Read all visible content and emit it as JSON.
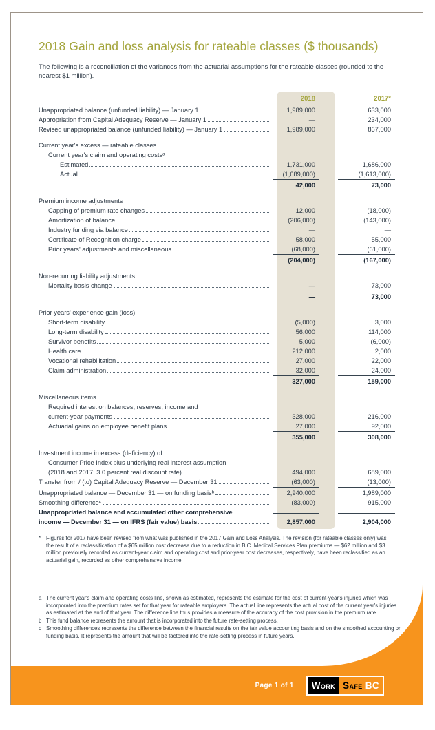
{
  "page": {
    "title": "2018 Gain and loss analysis for rateable classes ($ thousands)",
    "intro": "The following is a reconciliation of the variances from the actuarial assumptions for the rateable classes (rounded to the nearest $1 million)."
  },
  "table": {
    "col_2018": "2018",
    "col_2017": "2017*",
    "rows": [
      {
        "label": "Unappropriated balance (unfunded liability) — January 1",
        "i": 0,
        "leader": true,
        "v1": "1,989,000",
        "v2": "633,000"
      },
      {
        "label": "Appropriation from Capital Adequacy Reserve — January 1",
        "i": 0,
        "leader": true,
        "v1": "—",
        "v2": "234,000"
      },
      {
        "label": "Revised unappropriated balance (unfunded liability) — January 1",
        "i": 0,
        "leader": true,
        "v1": "1,989,000",
        "v2": "867,000"
      },
      {
        "label": "Current year's excess — rateable classes",
        "i": 0,
        "gap": true
      },
      {
        "label": "Current year's claim and operating costsᵃ",
        "i": 1
      },
      {
        "label": "Estimated",
        "i": 2,
        "leader": true,
        "v1": "1,731,000",
        "v2": "1,686,000"
      },
      {
        "label": "Actual",
        "i": 2,
        "leader": true,
        "v1": "(1,689,000)",
        "v2": "(1,613,000)"
      },
      {
        "label": "",
        "v1": "42,000",
        "v2": "73,000",
        "bold": true,
        "rule": true
      },
      {
        "label": "Premium income adjustments",
        "i": 0,
        "gap": true
      },
      {
        "label": "Capping of premium rate changes",
        "i": 1,
        "leader": true,
        "v1": "12,000",
        "v2": "(18,000)"
      },
      {
        "label": "Amortization of balance",
        "i": 1,
        "leader": true,
        "v1": "(206,000)",
        "v2": "(143,000)"
      },
      {
        "label": "Industry funding via balance",
        "i": 1,
        "leader": true,
        "v1": "—",
        "v2": "—"
      },
      {
        "label": "Certificate of Recognition charge",
        "i": 1,
        "leader": true,
        "v1": "58,000",
        "v2": "55,000"
      },
      {
        "label": "Prior years' adjustments and miscellaneous",
        "i": 1,
        "leader": true,
        "v1": "(68,000)",
        "v2": "(61,000)"
      },
      {
        "label": "",
        "v1": "(204,000)",
        "v2": "(167,000)",
        "bold": true,
        "rule": true
      },
      {
        "label": "Non-recurring liability adjustments",
        "i": 0,
        "gap": true
      },
      {
        "label": "Mortality basis change",
        "i": 1,
        "leader": true,
        "v1": "—",
        "v2": "73,000"
      },
      {
        "label": "",
        "v1": "—",
        "v2": "73,000",
        "bold": true,
        "rule": true
      },
      {
        "label": "Prior years' experience gain (loss)",
        "i": 0,
        "gap": true
      },
      {
        "label": "Short-term disability",
        "i": 1,
        "leader": true,
        "v1": "(5,000)",
        "v2": "3,000"
      },
      {
        "label": "Long-term disability",
        "i": 1,
        "leader": true,
        "v1": "56,000",
        "v2": "114,000"
      },
      {
        "label": "Survivor benefits",
        "i": 1,
        "leader": true,
        "v1": "5,000",
        "v2": "(6,000)"
      },
      {
        "label": "Health care",
        "i": 1,
        "leader": true,
        "v1": "212,000",
        "v2": "2,000"
      },
      {
        "label": "Vocational rehabilitation",
        "i": 1,
        "leader": true,
        "v1": "27,000",
        "v2": "22,000"
      },
      {
        "label": "Claim administration",
        "i": 1,
        "leader": true,
        "v1": "32,000",
        "v2": "24,000"
      },
      {
        "label": "",
        "v1": "327,000",
        "v2": "159,000",
        "bold": true,
        "rule": true
      },
      {
        "label": "Miscellaneous items",
        "i": 0,
        "gap": true
      },
      {
        "label": "Required interest on balances, reserves, income and",
        "i": 1
      },
      {
        "label": "current-year payments",
        "i": 1,
        "leader": true,
        "v1": "328,000",
        "v2": "216,000"
      },
      {
        "label": "Actuarial gains on employee benefit plans",
        "i": 1,
        "leader": true,
        "v1": "27,000",
        "v2": "92,000"
      },
      {
        "label": "",
        "v1": "355,000",
        "v2": "308,000",
        "bold": true,
        "rule": true
      },
      {
        "label": "Investment income in excess (deficiency) of",
        "i": 0,
        "gap": true
      },
      {
        "label": "Consumer Price Index plus underlying real interest assumption",
        "i": 1
      },
      {
        "label": "(2018 and 2017: 3.0 percent real discount rate)",
        "i": 1,
        "leader": true,
        "v1": "494,000",
        "v2": "689,000"
      },
      {
        "label": "Transfer from / (to) Capital Adequacy Reserve — December 31",
        "i": 0,
        "leader": true,
        "v1": "(63,000)",
        "v2": "(13,000)"
      },
      {
        "label": "Unappropriated balance — December 31 — on funding basisᵇ",
        "i": 0,
        "leader": true,
        "v1": "2,940,000",
        "v2": "1,989,000",
        "rule": true
      },
      {
        "label": "Smoothing differenceᶜ",
        "i": 0,
        "leader": true,
        "v1": "(83,000)",
        "v2": "915,000"
      },
      {
        "label": "Unappropriated balance and accumulated other comprehensive",
        "i": 0,
        "bold": true,
        "rule": true
      },
      {
        "label": "income — December 31 — on IFRS (fair value) basis",
        "i": 0,
        "leader": true,
        "v1": "2,857,000",
        "v2": "2,904,000",
        "bold": true
      }
    ]
  },
  "footnote_star": {
    "marker": "*",
    "text": "Figures for 2017 have been revised from what was published in the 2017 Gain and Loss Analysis. The revision (for rateable classes only) was the result of a reclassification of a $65 million cost decrease due to a reduction in B.C. Medical Services Plan premiums — $62 million and $3 million previously recorded as current-year claim and operating cost and prior-year cost decreases, respectively, have been reclassified as an actuarial gain, recorded as other comprehensive income."
  },
  "footnotes": [
    {
      "marker": "a",
      "text": "The current year's claim and operating costs line, shown as estimated, represents the estimate for the cost of current-year's injuries which was incorporated into the premium rates set for that year for rateable employers. The actual line represents the actual cost of the current year's injuries as estimated at the end of that year. The difference line thus provides a measure of the accuracy of the cost provision in the premium rate."
    },
    {
      "marker": "b",
      "text": "This fund balance represents the amount that is incorporated into the future rate-setting process."
    },
    {
      "marker": "c",
      "text": "Smoothing differences represents the difference between the financial results on the fair value accounting basis and on the smoothed accounting or funding basis. It represents the amount that will be factored into the rate-setting process in future years."
    }
  ],
  "footer": {
    "page_label": "Page 1 of 1",
    "logo": {
      "work": "Work",
      "safe": "Safe",
      "bc": "BC"
    }
  },
  "colors": {
    "orange": "#F7941D",
    "olive": "#A4A53D",
    "beige": "#E6E1D4",
    "text": "#2C3844"
  }
}
